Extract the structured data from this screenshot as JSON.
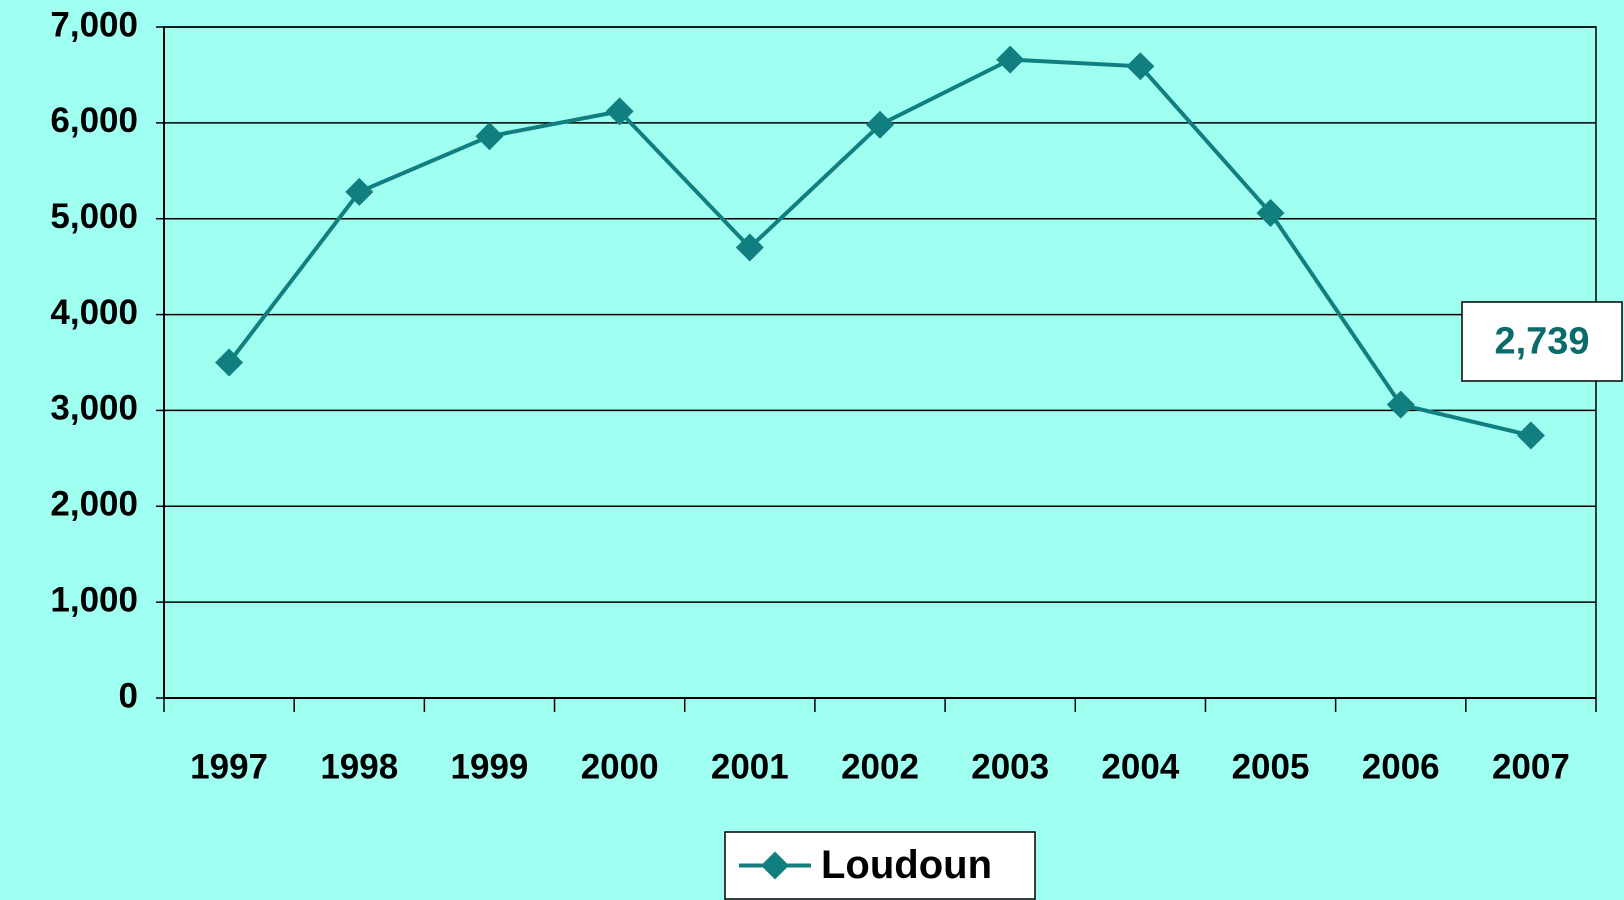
{
  "chart_data": {
    "type": "line",
    "categories": [
      "1997",
      "1998",
      "1999",
      "2000",
      "2001",
      "2002",
      "2003",
      "2004",
      "2005",
      "2006",
      "2007"
    ],
    "series": [
      {
        "name": "Loudoun",
        "color": "#117f7f",
        "values": [
          3500,
          5280,
          5860,
          6120,
          4700,
          5980,
          6660,
          6590,
          5060,
          3060,
          2739
        ],
        "value_labels": [
          null,
          null,
          null,
          null,
          null,
          null,
          null,
          null,
          null,
          null,
          "2,739"
        ]
      }
    ],
    "ylim": [
      0,
      7000
    ],
    "yticks": [
      0,
      {
        "value": 1000,
        "label": "1,000"
      },
      {
        "value": 2000,
        "label": "2,000"
      },
      {
        "value": 3000,
        "label": "3,000"
      },
      {
        "value": 4000,
        "label": "4,000"
      },
      {
        "value": 5000,
        "label": "5,000"
      },
      {
        "value": 6000,
        "label": "6,000"
      },
      {
        "value": 7000,
        "label": "7,000"
      }
    ],
    "grid": true,
    "legend": "bottom"
  }
}
